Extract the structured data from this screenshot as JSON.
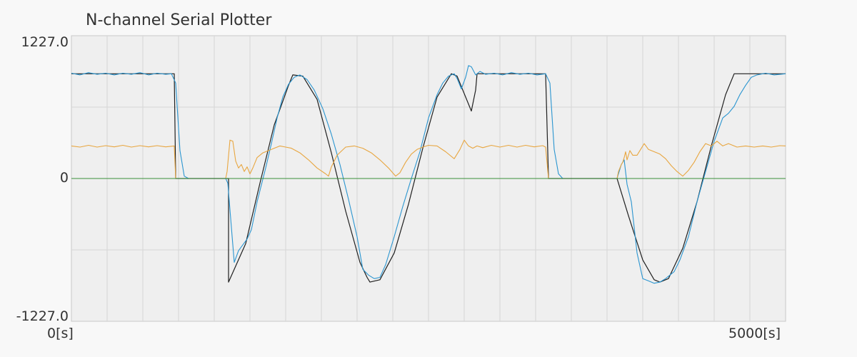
{
  "title": "N-channel Serial Plotter",
  "chart_data": {
    "type": "line",
    "x_range": [
      0,
      5000
    ],
    "y_range": [
      -1227.0,
      1227.0
    ],
    "y_tick_labels": {
      "top": "1227.0",
      "zero": "0",
      "bottom": "-1227.0"
    },
    "x_tick_labels": {
      "start": "0[s]",
      "end": "5000[s]"
    },
    "grid": true,
    "series": [
      {
        "color": "#1f1f1f",
        "points": [
          [
            0,
            900
          ],
          [
            720,
            900
          ],
          [
            730,
            0
          ],
          [
            1100,
            0
          ],
          [
            1100,
            -890
          ],
          [
            1220,
            -560
          ],
          [
            1320,
            -40
          ],
          [
            1420,
            460
          ],
          [
            1520,
            800
          ],
          [
            1550,
            890
          ],
          [
            1620,
            880
          ],
          [
            1720,
            680
          ],
          [
            1820,
            220
          ],
          [
            1920,
            -280
          ],
          [
            2020,
            -720
          ],
          [
            2070,
            -850
          ],
          [
            2090,
            -890
          ],
          [
            2160,
            -870
          ],
          [
            2260,
            -640
          ],
          [
            2360,
            -220
          ],
          [
            2460,
            260
          ],
          [
            2560,
            700
          ],
          [
            2660,
            900
          ],
          [
            2700,
            880
          ],
          [
            2800,
            580
          ],
          [
            2830,
            760
          ],
          [
            2840,
            900
          ],
          [
            3320,
            900
          ],
          [
            3340,
            0
          ],
          [
            3820,
            0
          ],
          [
            3900,
            -320
          ],
          [
            4000,
            -700
          ],
          [
            4080,
            -870
          ],
          [
            4120,
            -890
          ],
          [
            4180,
            -860
          ],
          [
            4280,
            -600
          ],
          [
            4380,
            -200
          ],
          [
            4480,
            280
          ],
          [
            4580,
            720
          ],
          [
            4640,
            900
          ],
          [
            5000,
            900
          ]
        ]
      },
      {
        "color": "#2a95d0",
        "points": [
          [
            0,
            905
          ],
          [
            60,
            890
          ],
          [
            120,
            910
          ],
          [
            180,
            895
          ],
          [
            240,
            905
          ],
          [
            300,
            890
          ],
          [
            360,
            905
          ],
          [
            420,
            895
          ],
          [
            480,
            910
          ],
          [
            540,
            890
          ],
          [
            600,
            905
          ],
          [
            660,
            895
          ],
          [
            700,
            900
          ],
          [
            730,
            820
          ],
          [
            760,
            240
          ],
          [
            790,
            20
          ],
          [
            820,
            0
          ],
          [
            1080,
            0
          ],
          [
            1095,
            -40
          ],
          [
            1120,
            -420
          ],
          [
            1140,
            -720
          ],
          [
            1170,
            -620
          ],
          [
            1200,
            -570
          ],
          [
            1230,
            -520
          ],
          [
            1260,
            -440
          ],
          [
            1300,
            -200
          ],
          [
            1360,
            90
          ],
          [
            1400,
            300
          ],
          [
            1440,
            520
          ],
          [
            1480,
            700
          ],
          [
            1520,
            810
          ],
          [
            1560,
            870
          ],
          [
            1600,
            890
          ],
          [
            1650,
            850
          ],
          [
            1700,
            760
          ],
          [
            1760,
            600
          ],
          [
            1820,
            380
          ],
          [
            1880,
            120
          ],
          [
            1940,
            -180
          ],
          [
            2000,
            -500
          ],
          [
            2040,
            -780
          ],
          [
            2080,
            -830
          ],
          [
            2120,
            -860
          ],
          [
            2160,
            -850
          ],
          [
            2200,
            -740
          ],
          [
            2260,
            -500
          ],
          [
            2320,
            -240
          ],
          [
            2380,
            0
          ],
          [
            2440,
            230
          ],
          [
            2500,
            520
          ],
          [
            2560,
            720
          ],
          [
            2600,
            820
          ],
          [
            2640,
            880
          ],
          [
            2680,
            900
          ],
          [
            2700,
            860
          ],
          [
            2730,
            770
          ],
          [
            2760,
            870
          ],
          [
            2780,
            970
          ],
          [
            2800,
            960
          ],
          [
            2830,
            890
          ],
          [
            2860,
            920
          ],
          [
            2900,
            895
          ],
          [
            2960,
            905
          ],
          [
            3020,
            890
          ],
          [
            3080,
            910
          ],
          [
            3140,
            895
          ],
          [
            3200,
            905
          ],
          [
            3260,
            890
          ],
          [
            3320,
            900
          ],
          [
            3350,
            820
          ],
          [
            3380,
            250
          ],
          [
            3410,
            40
          ],
          [
            3440,
            0
          ],
          [
            3820,
            0
          ],
          [
            3850,
            120
          ],
          [
            3870,
            160
          ],
          [
            3890,
            -50
          ],
          [
            3920,
            -200
          ],
          [
            3960,
            -640
          ],
          [
            4000,
            -860
          ],
          [
            4040,
            -880
          ],
          [
            4080,
            -900
          ],
          [
            4120,
            -890
          ],
          [
            4160,
            -860
          ],
          [
            4220,
            -800
          ],
          [
            4260,
            -700
          ],
          [
            4320,
            -500
          ],
          [
            4380,
            -200
          ],
          [
            4440,
            60
          ],
          [
            4500,
            320
          ],
          [
            4560,
            520
          ],
          [
            4600,
            560
          ],
          [
            4640,
            620
          ],
          [
            4680,
            720
          ],
          [
            4720,
            800
          ],
          [
            4760,
            870
          ],
          [
            4800,
            890
          ],
          [
            4860,
            905
          ],
          [
            4920,
            890
          ],
          [
            5000,
            900
          ]
        ]
      },
      {
        "color": "#e8a640",
        "points": [
          [
            0,
            280
          ],
          [
            60,
            270
          ],
          [
            120,
            285
          ],
          [
            180,
            270
          ],
          [
            240,
            282
          ],
          [
            300,
            272
          ],
          [
            360,
            285
          ],
          [
            420,
            270
          ],
          [
            480,
            282
          ],
          [
            540,
            272
          ],
          [
            600,
            282
          ],
          [
            660,
            272
          ],
          [
            720,
            280
          ],
          [
            730,
            0
          ],
          [
            1080,
            0
          ],
          [
            1090,
            60
          ],
          [
            1110,
            330
          ],
          [
            1130,
            320
          ],
          [
            1150,
            150
          ],
          [
            1170,
            90
          ],
          [
            1190,
            120
          ],
          [
            1210,
            60
          ],
          [
            1230,
            100
          ],
          [
            1250,
            40
          ],
          [
            1270,
            90
          ],
          [
            1300,
            180
          ],
          [
            1340,
            220
          ],
          [
            1380,
            240
          ],
          [
            1420,
            260
          ],
          [
            1460,
            280
          ],
          [
            1500,
            270
          ],
          [
            1540,
            260
          ],
          [
            1600,
            220
          ],
          [
            1660,
            160
          ],
          [
            1720,
            90
          ],
          [
            1780,
            40
          ],
          [
            1800,
            20
          ],
          [
            1820,
            100
          ],
          [
            1860,
            200
          ],
          [
            1920,
            270
          ],
          [
            1980,
            280
          ],
          [
            2040,
            260
          ],
          [
            2100,
            220
          ],
          [
            2160,
            160
          ],
          [
            2220,
            90
          ],
          [
            2270,
            20
          ],
          [
            2300,
            50
          ],
          [
            2340,
            140
          ],
          [
            2380,
            210
          ],
          [
            2420,
            250
          ],
          [
            2460,
            270
          ],
          [
            2500,
            285
          ],
          [
            2560,
            280
          ],
          [
            2620,
            230
          ],
          [
            2680,
            170
          ],
          [
            2720,
            250
          ],
          [
            2750,
            330
          ],
          [
            2780,
            280
          ],
          [
            2810,
            260
          ],
          [
            2840,
            280
          ],
          [
            2880,
            265
          ],
          [
            2940,
            285
          ],
          [
            3000,
            270
          ],
          [
            3060,
            285
          ],
          [
            3120,
            270
          ],
          [
            3180,
            285
          ],
          [
            3240,
            272
          ],
          [
            3300,
            282
          ],
          [
            3320,
            270
          ],
          [
            3340,
            0
          ],
          [
            3820,
            0
          ],
          [
            3830,
            60
          ],
          [
            3850,
            120
          ],
          [
            3860,
            140
          ],
          [
            3870,
            180
          ],
          [
            3880,
            230
          ],
          [
            3890,
            160
          ],
          [
            3910,
            240
          ],
          [
            3930,
            200
          ],
          [
            3960,
            200
          ],
          [
            3980,
            240
          ],
          [
            4010,
            300
          ],
          [
            4040,
            250
          ],
          [
            4080,
            230
          ],
          [
            4120,
            210
          ],
          [
            4160,
            170
          ],
          [
            4200,
            110
          ],
          [
            4240,
            60
          ],
          [
            4280,
            20
          ],
          [
            4320,
            70
          ],
          [
            4360,
            140
          ],
          [
            4400,
            230
          ],
          [
            4440,
            300
          ],
          [
            4480,
            280
          ],
          [
            4520,
            320
          ],
          [
            4560,
            280
          ],
          [
            4600,
            300
          ],
          [
            4660,
            270
          ],
          [
            4720,
            280
          ],
          [
            4780,
            270
          ],
          [
            4840,
            280
          ],
          [
            4900,
            270
          ],
          [
            4960,
            282
          ],
          [
            5000,
            280
          ]
        ]
      },
      {
        "color": "#3a8f3a",
        "points": [
          [
            0,
            0
          ],
          [
            5000,
            0
          ]
        ]
      }
    ]
  }
}
